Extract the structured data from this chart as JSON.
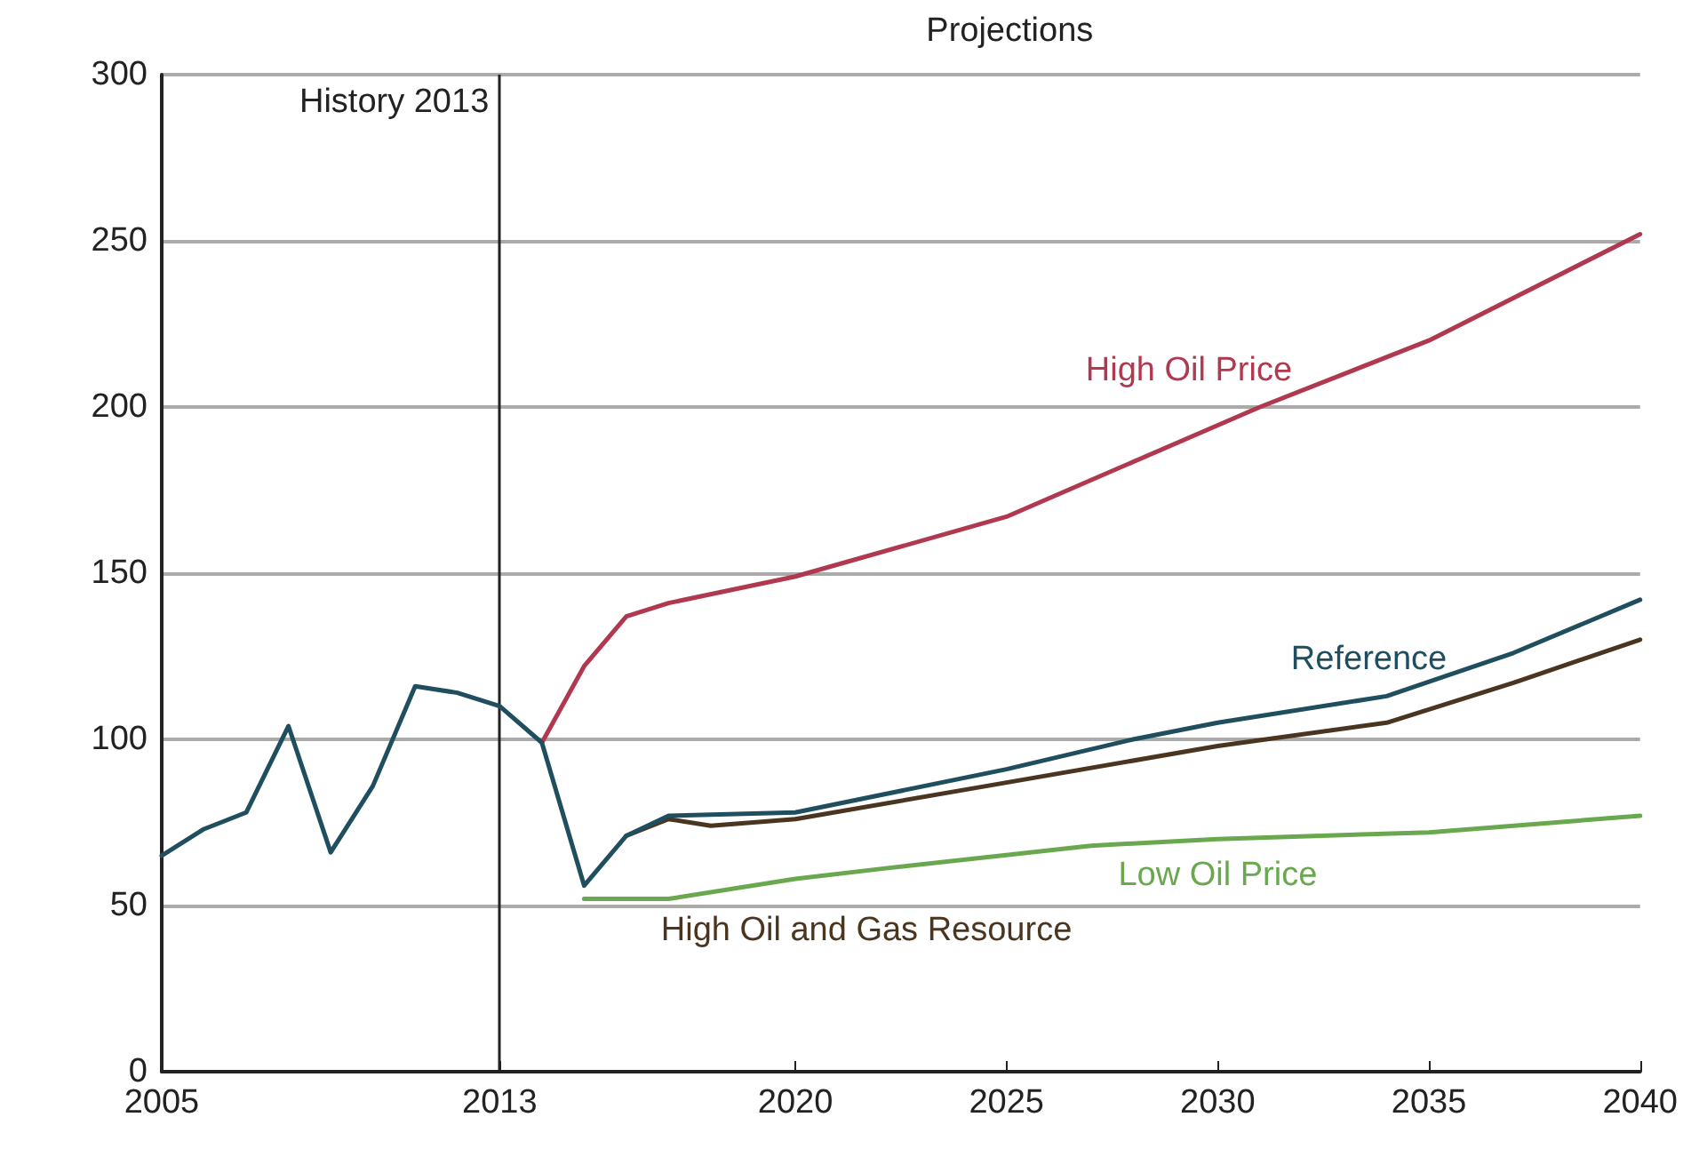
{
  "chart_data": {
    "type": "line",
    "legend": false,
    "grid": "y",
    "marker": "none",
    "line_style": "solid",
    "xlim": [
      2005,
      2040
    ],
    "xticks": [
      2005,
      2013,
      2020,
      2025,
      2030,
      2035,
      2040
    ],
    "ylim": [
      0,
      300
    ],
    "yticks": [
      0,
      50,
      100,
      150,
      200,
      250,
      300
    ],
    "ref_lines": [
      {
        "axis": "x",
        "value": 2013,
        "label": "History 2013",
        "color": "#222222"
      }
    ],
    "annotations": [
      "Projections"
    ],
    "series": [
      {
        "name": "High Oil Price",
        "color": "#b0384f",
        "x": [
          2014,
          2015,
          2016,
          2017,
          2020,
          2025,
          2027,
          2031,
          2035,
          2040
        ],
        "values": [
          99,
          122,
          137,
          141,
          149,
          167,
          178,
          200,
          220,
          252
        ]
      },
      {
        "name": "Low Oil Price",
        "color": "#6aa84f",
        "x": [
          2015,
          2017,
          2020,
          2022,
          2027,
          2030,
          2035,
          2040
        ],
        "values": [
          52,
          52,
          58,
          61,
          68,
          70,
          72,
          77
        ]
      },
      {
        "name": "High Oil and Gas Resource",
        "color": "#4a3520",
        "x": [
          2016,
          2017,
          2018,
          2020,
          2025,
          2030,
          2034,
          2037,
          2040
        ],
        "values": [
          71,
          76,
          74,
          76,
          87,
          98,
          105,
          117,
          130
        ]
      },
      {
        "name": "Reference",
        "color": "#1f4e5f",
        "x": [
          2005,
          2006,
          2007,
          2008,
          2009,
          2010,
          2011,
          2012,
          2013,
          2014,
          2015,
          2016,
          2017,
          2020,
          2025,
          2028,
          2030,
          2034,
          2037,
          2040
        ],
        "values": [
          65,
          73,
          78,
          104,
          66,
          86,
          116,
          114,
          110,
          99,
          56,
          71,
          77,
          78,
          91,
          100,
          105,
          113,
          126,
          142
        ]
      }
    ]
  }
}
